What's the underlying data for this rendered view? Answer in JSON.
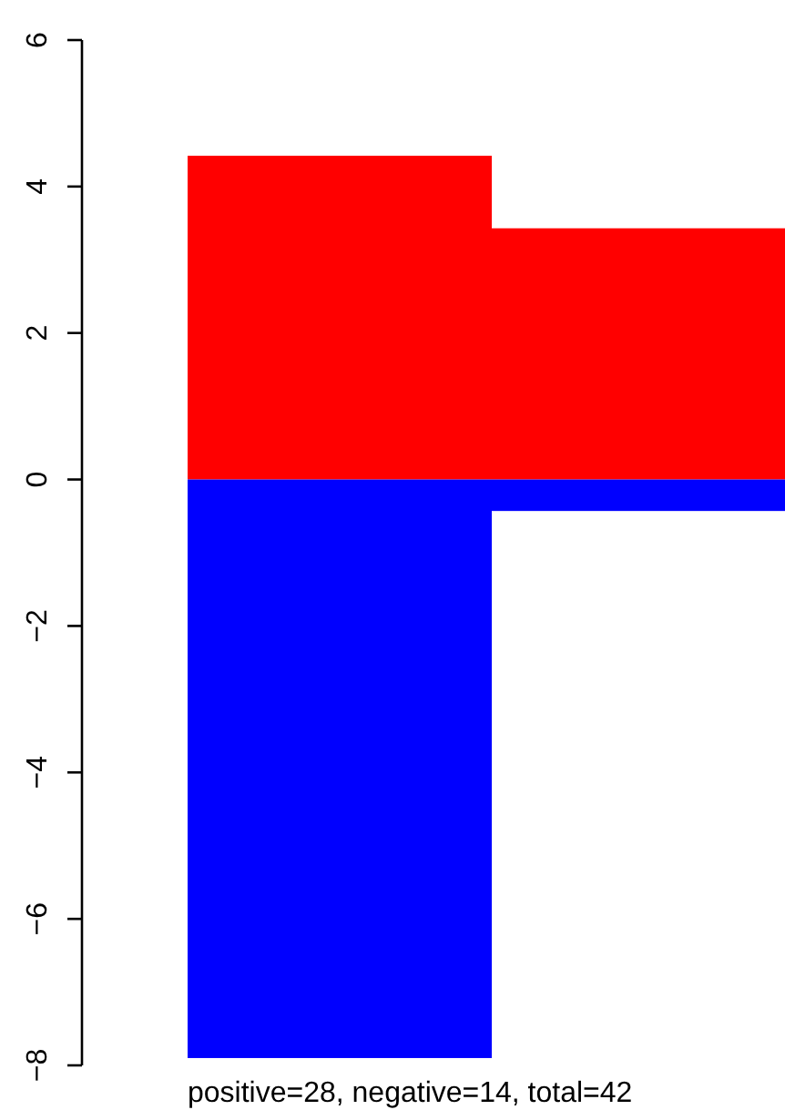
{
  "chart_data": {
    "type": "bar",
    "stacked": true,
    "categories": [
      null,
      null
    ],
    "series": [
      {
        "color": "#ff0000",
        "values": [
          4.42,
          3.43
        ]
      },
      {
        "color": "#0000ff",
        "values": [
          -7.9,
          -0.43
        ]
      }
    ],
    "ylim": [
      -8,
      6
    ],
    "yticks": [
      {
        "value": -8,
        "label": "−8"
      },
      {
        "value": -6,
        "label": "−6"
      },
      {
        "value": -4,
        "label": "−4"
      },
      {
        "value": -2,
        "label": "−2"
      },
      0,
      2,
      4,
      6
    ],
    "annotations": [
      "positive=28, negative=14, total=42"
    ],
    "grid": false,
    "tick_labels": "y"
  }
}
